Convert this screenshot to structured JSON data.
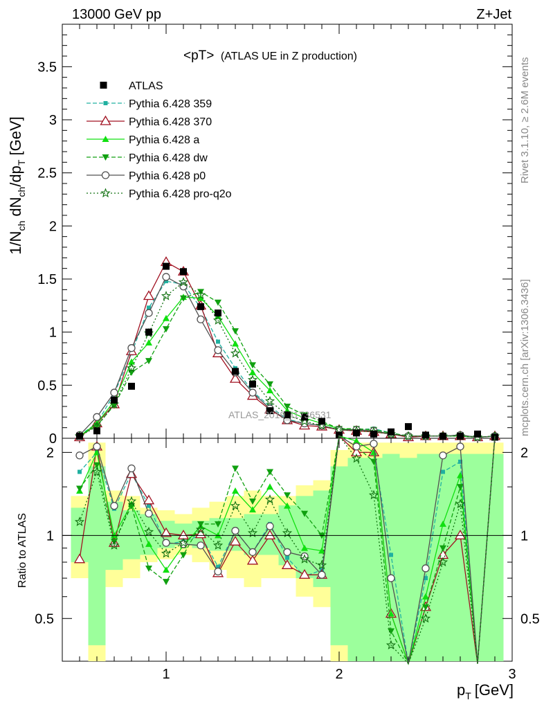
{
  "header": {
    "left": "13000 GeV pp",
    "right": "Z+Jet"
  },
  "side_labels": {
    "rivet": "Rivet 3.1.10, ≥ 2.6M events",
    "mcplots": "mcplots.cern.ch [arXiv:1306.3436]"
  },
  "watermark": "ATLAS_2019_I1736531",
  "colors": {
    "band_inner": "#9cff9c",
    "band_outer": "#ffff99"
  },
  "chart_data": {
    "type": "line",
    "title_main": "<pT>",
    "title_sub": "(ATLAS UE in Z production)",
    "xlabel_main": "p",
    "xlabel_sub": "T",
    "xlabel_unit": "[GeV]",
    "ylabel_main": "1/N",
    "ylabel_sub1": "ch",
    "ylabel_mid": " dN",
    "ylabel_sub2": "ch",
    "ylabel_mid2": "/dp",
    "ylabel_sub3": "T",
    "ylabel_unit": " [GeV]",
    "ratio_ylabel": "Ratio to ATLAS",
    "xlim": [
      0.4,
      3.0
    ],
    "ylim": [
      0,
      3.9
    ],
    "ratio_ylim": [
      0.35,
      2.25
    ],
    "main_yticks": [
      "0",
      "0.5",
      "1",
      "1.5",
      "2",
      "2.5",
      "3",
      "3.5"
    ],
    "main_ytick_values": [
      0,
      0.5,
      1,
      1.5,
      2,
      2.5,
      3,
      3.5
    ],
    "ratio_yticks": [
      "0.5",
      "1",
      "2"
    ],
    "ratio_ytick_values": [
      0.5,
      1,
      2
    ],
    "xticks": [
      "1",
      "2",
      "3"
    ],
    "xtick_values": [
      1,
      2,
      3
    ],
    "x": [
      0.5,
      0.6,
      0.7,
      0.8,
      0.9,
      1.0,
      1.1,
      1.2,
      1.3,
      1.4,
      1.5,
      1.6,
      1.7,
      1.8,
      1.9,
      2.0,
      2.1,
      2.2,
      2.3,
      2.4,
      2.5,
      2.6,
      2.7,
      2.8,
      2.9
    ],
    "data": {
      "name": "ATLAS",
      "values": [
        0.02,
        0.07,
        0.36,
        0.49,
        1.0,
        1.62,
        1.57,
        1.24,
        1.18,
        0.63,
        0.51,
        0.26,
        0.22,
        0.2,
        0.16,
        0.03,
        0.05,
        0.04,
        0.06,
        0.11,
        0.03,
        0.02,
        0.02,
        0.04,
        0.01
      ]
    },
    "band_inner": [
      0.2,
      0.6,
      0.25,
      0.18,
      0.15,
      0.1,
      0.08,
      0.1,
      0.12,
      0.12,
      0.15,
      0.15,
      0.22,
      0.3,
      0.35,
      0.6,
      0.7,
      0.7,
      0.75,
      0.7,
      0.75,
      0.75,
      0.75,
      0.75,
      0.75
    ],
    "band_outer": [
      0.3,
      0.9,
      0.35,
      0.3,
      0.2,
      0.18,
      0.15,
      0.2,
      0.25,
      0.3,
      0.35,
      0.3,
      0.3,
      0.4,
      0.45,
      0.8,
      0.9,
      0.9,
      0.9,
      0.9,
      0.9,
      0.9,
      0.9,
      0.9,
      0.9
    ],
    "series": [
      {
        "name": "Pythia 6.428 359",
        "color": "#20b0a0",
        "dash": "6,3",
        "marker": "square-small",
        "values": [
          0.03,
          0.14,
          0.42,
          0.8,
          1.23,
          1.48,
          1.45,
          1.23,
          0.91,
          0.66,
          0.44,
          0.3,
          0.18,
          0.14,
          0.12,
          0.08,
          0.08,
          0.09,
          0.05,
          0.02,
          0.02,
          0.02,
          0.03,
          0.01,
          0.02
        ],
        "ratio": [
          1.7,
          2.0,
          1.25,
          1.68,
          1.28,
          0.93,
          0.95,
          1.0,
          0.77,
          1.04,
          0.87,
          1.1,
          0.83,
          0.71,
          0.75,
          2.8,
          2.0,
          2.0,
          0.85,
          0.2,
          0.7,
          1.7,
          1.85,
          0.28,
          2.5
        ]
      },
      {
        "name": "Pythia 6.428 370",
        "color": "#a01020",
        "dash": "",
        "marker": "triangle-open",
        "values": [
          0.01,
          0.14,
          0.32,
          0.82,
          1.34,
          1.66,
          1.57,
          1.25,
          0.8,
          0.56,
          0.4,
          0.27,
          0.17,
          0.12,
          0.11,
          0.08,
          0.07,
          0.06,
          0.04,
          0.01,
          0.02,
          0.02,
          0.02,
          0.01,
          0.02
        ],
        "ratio": [
          0.82,
          2.1,
          0.94,
          1.67,
          1.34,
          1.02,
          1.0,
          1.01,
          0.73,
          0.95,
          0.81,
          1.0,
          0.78,
          0.72,
          0.72,
          2.8,
          2.0,
          2.0,
          0.52,
          0.15,
          0.55,
          0.85,
          1.0,
          0.3,
          2.5
        ]
      },
      {
        "name": "Pythia 6.428 a",
        "color": "#10e010",
        "dash": "",
        "marker": "triangle-up",
        "values": [
          0.02,
          0.14,
          0.35,
          0.72,
          0.9,
          1.13,
          1.33,
          1.32,
          1.15,
          0.89,
          0.62,
          0.45,
          0.26,
          0.19,
          0.14,
          0.09,
          0.08,
          0.07,
          0.04,
          0.02,
          0.02,
          0.02,
          0.02,
          0.01,
          0.02
        ],
        "ratio": [
          1.45,
          2.0,
          1.0,
          1.3,
          0.93,
          0.75,
          0.92,
          1.08,
          1.0,
          1.45,
          1.24,
          1.5,
          1.28,
          0.9,
          0.88,
          2.8,
          2.2,
          2.0,
          0.52,
          0.15,
          0.6,
          1.1,
          1.65,
          0.3,
          2.5
        ]
      },
      {
        "name": "Pythia 6.428 dw",
        "color": "#10a010",
        "dash": "6,3",
        "marker": "triangle-down",
        "values": [
          0.02,
          0.12,
          0.31,
          0.62,
          0.73,
          1.03,
          1.32,
          1.38,
          1.28,
          1.01,
          0.69,
          0.51,
          0.3,
          0.22,
          0.16,
          0.09,
          0.09,
          0.08,
          0.05,
          0.02,
          0.02,
          0.02,
          0.03,
          0.01,
          0.02
        ],
        "ratio": [
          1.48,
          1.8,
          0.95,
          1.28,
          0.76,
          0.68,
          0.85,
          1.1,
          1.1,
          1.75,
          1.33,
          1.7,
          1.4,
          1.2,
          1.0,
          2.8,
          2.1,
          1.85,
          0.45,
          0.15,
          0.55,
          0.9,
          1.5,
          0.28,
          2.5
        ]
      },
      {
        "name": "Pythia 6.428 p0",
        "color": "#505050",
        "dash": "",
        "marker": "circle-open",
        "values": [
          0.03,
          0.2,
          0.43,
          0.85,
          1.18,
          1.52,
          1.43,
          1.12,
          0.83,
          0.62,
          0.43,
          0.28,
          0.17,
          0.14,
          0.12,
          0.08,
          0.08,
          0.07,
          0.04,
          0.02,
          0.02,
          0.02,
          0.03,
          0.01,
          0.02
        ],
        "ratio": [
          1.95,
          2.1,
          1.28,
          1.75,
          1.2,
          0.94,
          0.93,
          0.92,
          0.74,
          1.04,
          0.87,
          1.08,
          0.87,
          0.84,
          0.72,
          2.8,
          2.1,
          2.15,
          0.7,
          0.15,
          0.76,
          1.95,
          2.1,
          0.28,
          2.5
        ]
      },
      {
        "name": "Pythia 6.428 pro-q2o",
        "color": "#107010",
        "dash": "2,3",
        "marker": "star-open",
        "values": [
          0.02,
          0.11,
          0.32,
          0.66,
          0.99,
          1.34,
          1.47,
          1.35,
          1.11,
          0.8,
          0.55,
          0.35,
          0.22,
          0.16,
          0.12,
          0.08,
          0.07,
          0.06,
          0.04,
          0.02,
          0.02,
          0.02,
          0.02,
          0.01,
          0.02
        ],
        "ratio": [
          1.12,
          1.7,
          0.92,
          1.33,
          1.03,
          0.86,
          0.94,
          1.05,
          0.92,
          1.28,
          1.02,
          1.35,
          1.02,
          0.82,
          0.78,
          2.8,
          1.9,
          1.4,
          0.4,
          0.15,
          0.5,
          0.8,
          1.3,
          0.28,
          2.5
        ]
      }
    ]
  }
}
